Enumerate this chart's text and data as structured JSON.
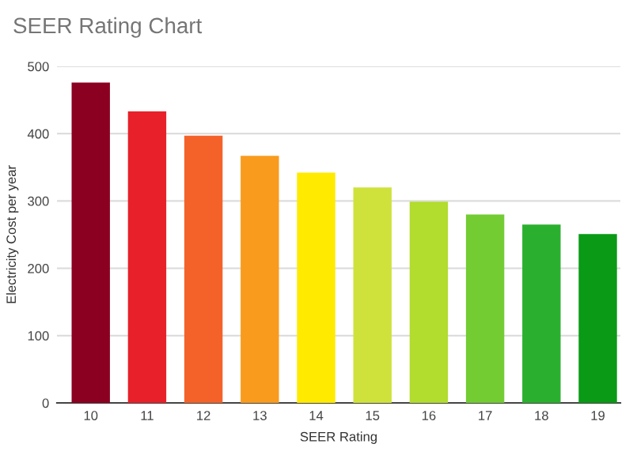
{
  "chart_data": {
    "type": "bar",
    "title": "SEER Rating Chart",
    "xlabel": "SEER Rating",
    "ylabel": "Electricity Cost per year",
    "categories": [
      "10",
      "11",
      "12",
      "13",
      "14",
      "15",
      "16",
      "17",
      "18",
      "19"
    ],
    "values": [
      476,
      433,
      397,
      367,
      342,
      320,
      299,
      280,
      265,
      251
    ],
    "colors": [
      "#8b0020",
      "#e8202a",
      "#f4622a",
      "#f99b1d",
      "#ffea00",
      "#cfe23c",
      "#b2dc2e",
      "#72cc32",
      "#2ab02e",
      "#0a9a16"
    ],
    "ylim": [
      0,
      500
    ],
    "yticks": [
      0,
      100,
      200,
      300,
      400,
      500
    ],
    "grid": "y"
  }
}
